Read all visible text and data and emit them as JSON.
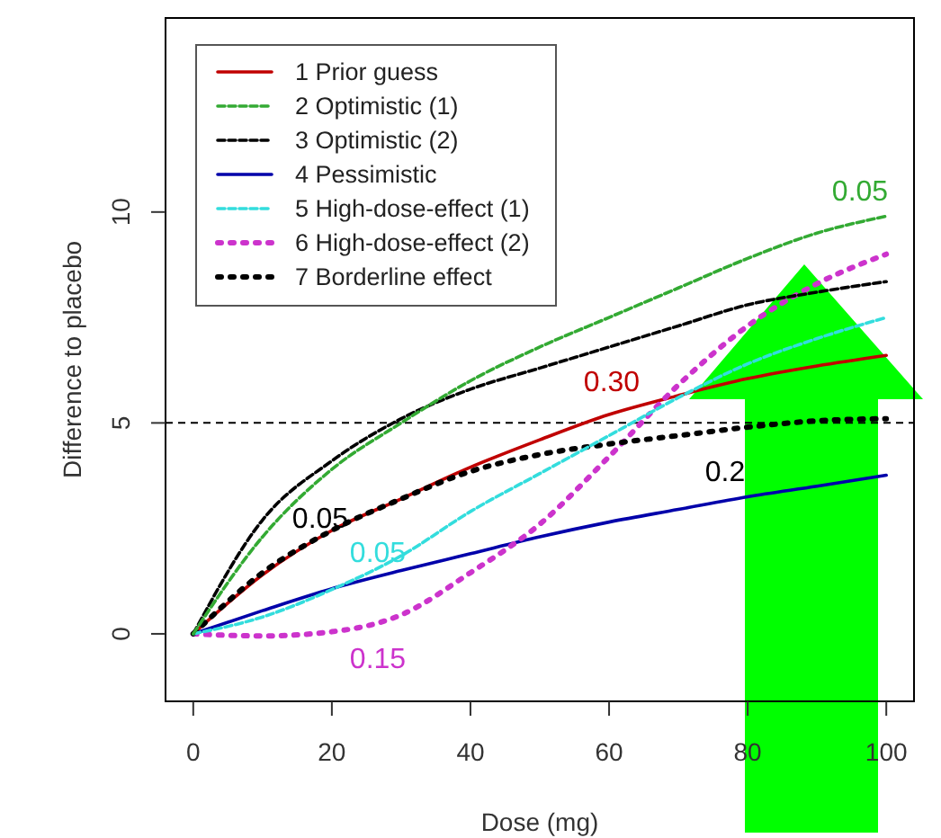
{
  "chart_data": {
    "type": "line",
    "xlabel": "Dose (mg)",
    "ylabel": "Difference to placebo",
    "x": [
      0,
      10,
      20,
      30,
      40,
      50,
      60,
      70,
      80,
      90,
      100
    ],
    "xlim": [
      -4,
      104
    ],
    "xticks": [
      0,
      20,
      40,
      60,
      80,
      100
    ],
    "ylim": [
      -1.6,
      14.6
    ],
    "yticks": [
      0,
      5,
      10
    ],
    "grid": false,
    "legend": "top left",
    "series": [
      {
        "name": "1 Prior guess",
        "color": "#c00000",
        "line_style": "solid",
        "values": [
          0,
          1.4,
          2.45,
          3.2,
          3.95,
          4.6,
          5.2,
          5.65,
          6.05,
          6.35,
          6.6
        ]
      },
      {
        "name": "2 Optimistic (1)",
        "color": "#33aa33",
        "line_style": "dashed",
        "values": [
          0,
          2.3,
          3.9,
          5.0,
          6.0,
          6.8,
          7.5,
          8.2,
          8.9,
          9.5,
          9.9
        ]
      },
      {
        "name": "3 Optimistic (2)",
        "color": "#000000",
        "line_style": "dashed",
        "values": [
          0,
          2.7,
          4.1,
          5.1,
          5.8,
          6.3,
          6.8,
          7.3,
          7.8,
          8.1,
          8.35
        ]
      },
      {
        "name": "4 Pessimistic",
        "color": "#0000aa",
        "line_style": "solid",
        "values": [
          0,
          0.55,
          1.07,
          1.5,
          1.9,
          2.3,
          2.65,
          2.95,
          3.25,
          3.5,
          3.76
        ]
      },
      {
        "name": "5 High-dose-effect (1)",
        "color": "#33dddd",
        "line_style": "dashed",
        "values": [
          0,
          0.4,
          1.05,
          1.85,
          2.9,
          3.8,
          4.7,
          5.6,
          6.4,
          7.0,
          7.5
        ]
      },
      {
        "name": "6 High-dose-effect (2)",
        "color": "#cc33cc",
        "line_style": "dotted",
        "values": [
          0,
          -0.05,
          0.05,
          0.45,
          1.45,
          2.6,
          4.2,
          5.9,
          7.3,
          8.3,
          9.0
        ]
      },
      {
        "name": "7 Borderline effect",
        "color": "#000000",
        "line_style": "dotted",
        "values": [
          0,
          1.45,
          2.45,
          3.2,
          3.85,
          4.25,
          4.5,
          4.7,
          4.9,
          5.05,
          5.1
        ]
      }
    ],
    "ref_lines": [
      {
        "axis": "y",
        "value": 5,
        "color": "#000000",
        "line_style": "dashed"
      }
    ],
    "annotations": [
      "0.30",
      "0.05",
      "0.05",
      "0.05",
      "0.15",
      "0.2"
    ]
  }
}
